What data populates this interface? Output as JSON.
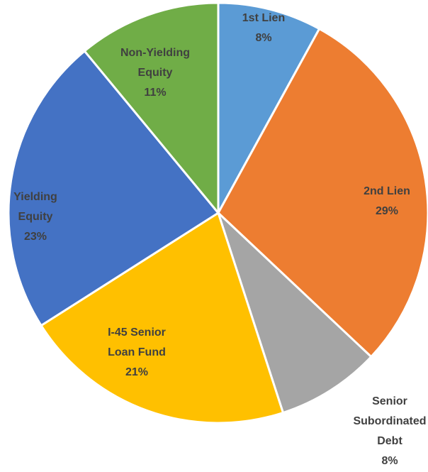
{
  "chart_data": {
    "type": "pie",
    "categories": [
      "1st Lien",
      "2nd Lien",
      "Senior Subordinated Debt",
      "I-45 Senior Loan Fund",
      "Yielding Equity",
      "Non-Yielding Equity"
    ],
    "values": [
      8,
      29,
      8,
      21,
      23,
      11
    ],
    "value_labels": [
      "8%",
      "29%",
      "8%",
      "21%",
      "23%",
      "11%"
    ],
    "colors": [
      "#5b9bd5",
      "#ed7d31",
      "#a5a5a5",
      "#ffc000",
      "#4472c4",
      "#70ad47"
    ]
  }
}
